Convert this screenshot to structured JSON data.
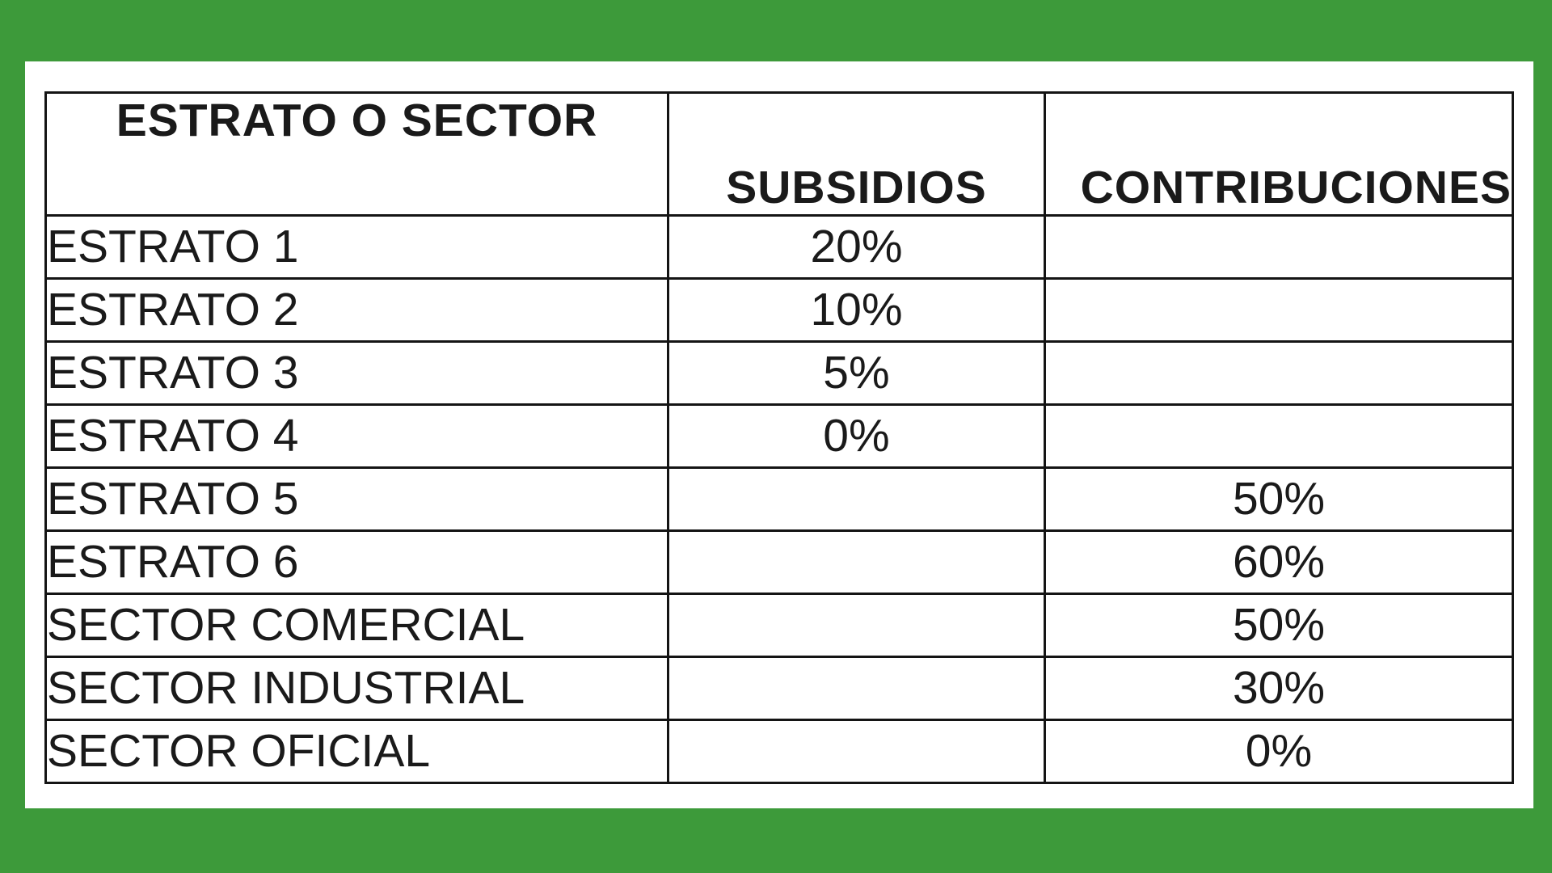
{
  "table": {
    "headers": {
      "sector": "ESTRATO O SECTOR",
      "subsidios": "SUBSIDIOS",
      "contribuciones": "CONTRIBUCIONES"
    },
    "rows": [
      {
        "label": "ESTRATO 1",
        "subsidios": "20%",
        "contribuciones": ""
      },
      {
        "label": "ESTRATO 2",
        "subsidios": "10%",
        "contribuciones": ""
      },
      {
        "label": "ESTRATO 3",
        "subsidios": "5%",
        "contribuciones": ""
      },
      {
        "label": "ESTRATO 4",
        "subsidios": "0%",
        "contribuciones": ""
      },
      {
        "label": "ESTRATO 5",
        "subsidios": "",
        "contribuciones": "50%"
      },
      {
        "label": "ESTRATO 6",
        "subsidios": "",
        "contribuciones": "60%"
      },
      {
        "label": "SECTOR COMERCIAL",
        "subsidios": "",
        "contribuciones": "50%"
      },
      {
        "label": "SECTOR INDUSTRIAL",
        "subsidios": "",
        "contribuciones": "30%"
      },
      {
        "label": "SECTOR OFICIAL",
        "subsidios": "",
        "contribuciones": "0%"
      }
    ]
  },
  "colors": {
    "background": "#3d9a3a",
    "panel": "#ffffff",
    "border": "#141414",
    "text": "#1a1a1a"
  }
}
